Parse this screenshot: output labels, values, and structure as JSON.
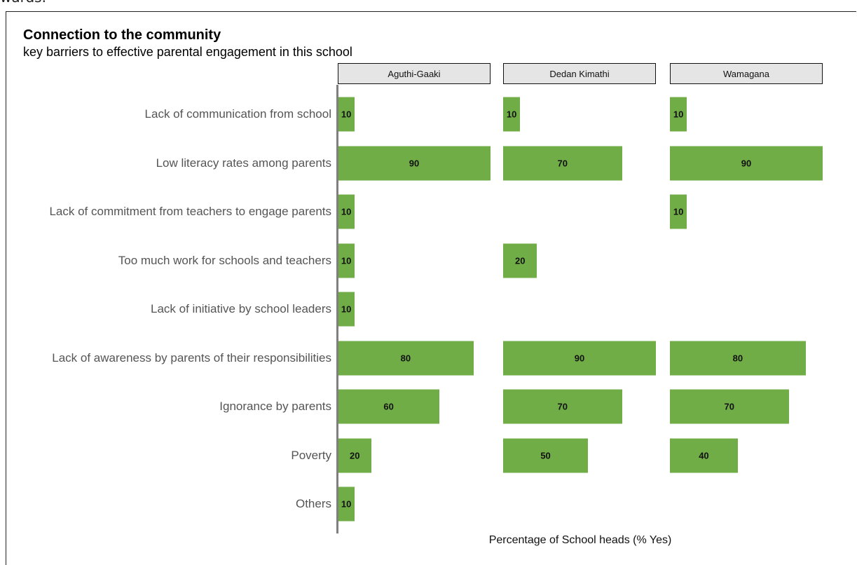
{
  "document": {
    "fragment_text": "wards."
  },
  "chart_data": {
    "type": "bar",
    "orientation": "horizontal",
    "faceted": true,
    "title": "Connection to the community",
    "subtitle": "key barriers to effective parental engagement in this school",
    "xlabel": "Percentage of School heads (% Yes)",
    "ylabel": "",
    "xlim": [
      0,
      90
    ],
    "grid": false,
    "bar_color": "#70ad47",
    "strip_color": "#e5e5e5",
    "categories": [
      "Lack of communication from school",
      "Low literacy rates among parents",
      "Lack of commitment from teachers to engage parents",
      "Too much work for schools and teachers",
      "Lack of initiative by school leaders",
      "Lack of awareness by parents of their responsibilities",
      "Ignorance by parents",
      "Poverty",
      "Others"
    ],
    "panels": [
      {
        "name": "Aguthi-Gaaki",
        "values": [
          10,
          90,
          10,
          10,
          10,
          80,
          60,
          20,
          10
        ]
      },
      {
        "name": "Dedan Kimathi",
        "values": [
          10,
          70,
          null,
          20,
          null,
          90,
          70,
          50,
          null
        ]
      },
      {
        "name": "Wamagana",
        "values": [
          10,
          90,
          10,
          null,
          null,
          80,
          70,
          40,
          null
        ]
      }
    ]
  }
}
